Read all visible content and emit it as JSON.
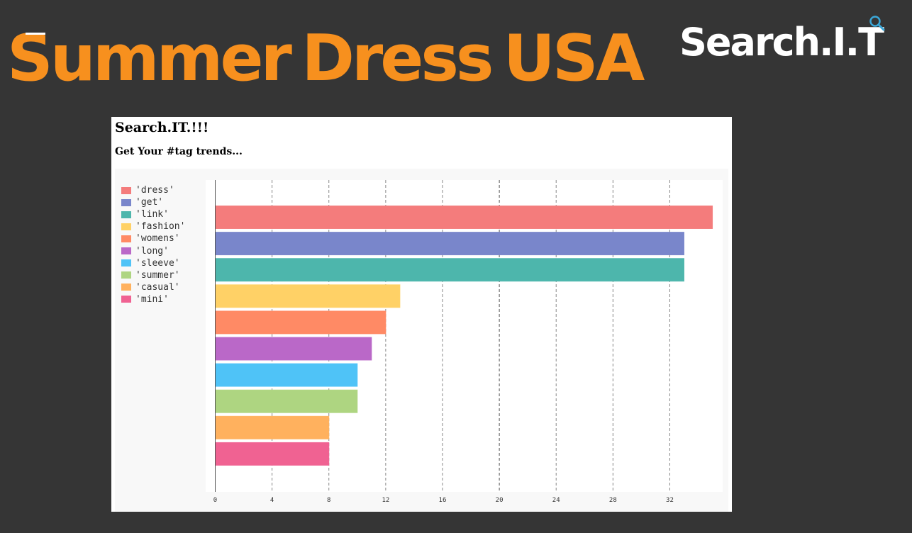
{
  "page": {
    "title": "Summer Dress USA",
    "brand": "Search.I.T"
  },
  "panel": {
    "title": "Search.IT.!!!",
    "subtitle": "Get Your #tag trends..."
  },
  "colors": {
    "background": "#353535",
    "title": "#f7901e",
    "brand": "#ffffff",
    "brand_icon": "#3aa7d8"
  },
  "chart_data": {
    "type": "bar",
    "orientation": "horizontal",
    "categories": [
      "'dress'",
      "'get'",
      "'link'",
      "'fashion'",
      "'womens'",
      "'long'",
      "'sleeve'",
      "'summer'",
      "'casual'",
      "'mini'"
    ],
    "values": [
      35,
      33,
      33,
      13,
      12,
      11,
      10,
      10,
      8,
      8
    ],
    "colors": [
      "#f47c7c",
      "#7986cb",
      "#4db6ac",
      "#ffd166",
      "#ff8a65",
      "#ba68c8",
      "#4fc3f7",
      "#aed581",
      "#ffb15e",
      "#f06292"
    ],
    "xlim": [
      0,
      36
    ],
    "xticks": [
      0,
      4,
      8,
      12,
      16,
      20,
      24,
      28,
      32
    ],
    "xlabel": "",
    "ylabel": "",
    "grid": "vertical-dashed",
    "legend": "left"
  }
}
